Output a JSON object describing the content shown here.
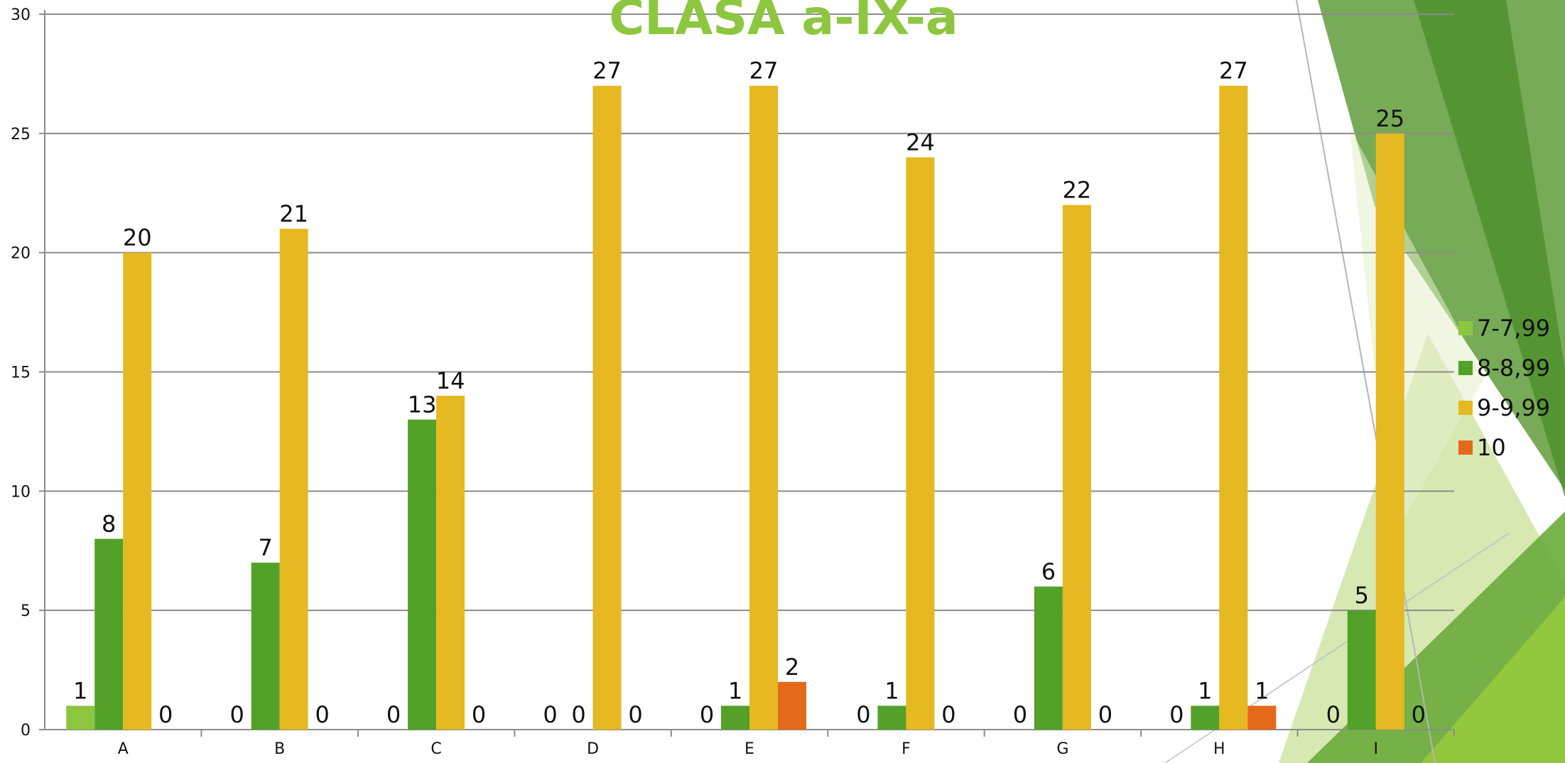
{
  "chart_data": {
    "type": "bar",
    "title": "CLASA a-IX-a",
    "xlabel": "",
    "ylabel": "",
    "categories": [
      "A",
      "B",
      "C",
      "D",
      "E",
      "F",
      "G",
      "H",
      "I"
    ],
    "ylim": [
      0,
      30
    ],
    "yticks": [
      "0",
      "5",
      "10",
      "15",
      "20",
      "25",
      "30"
    ],
    "grid": true,
    "legend_position": "right",
    "title_color": "#8dc63f",
    "series": [
      {
        "name": "7-7,99",
        "color": "#8cc63f",
        "values": [
          1,
          0,
          0,
          0,
          0,
          0,
          0,
          0,
          0
        ],
        "labels": [
          "1",
          "0",
          "0",
          "0",
          "0",
          "0",
          "0",
          "0",
          "0"
        ]
      },
      {
        "name": "8-8,99",
        "color": "#53a128",
        "values": [
          8,
          7,
          13,
          0,
          1,
          1,
          6,
          1,
          5
        ],
        "labels": [
          "8",
          "7",
          "13",
          "0",
          "1",
          "1",
          "6",
          "1",
          "5"
        ]
      },
      {
        "name": "9-9,99",
        "color": "#e6b821",
        "values": [
          20,
          21,
          14,
          27,
          27,
          24,
          22,
          27,
          25
        ],
        "labels": [
          "20",
          "21",
          "14",
          "27",
          "27",
          "24",
          "22",
          "27",
          "25"
        ]
      },
      {
        "name": "10",
        "color": "#e5691b",
        "values": [
          0,
          0,
          0,
          0,
          2,
          0,
          0,
          1,
          0
        ],
        "labels": [
          "0",
          "0",
          "0",
          "0",
          "2",
          "0",
          "0",
          "1",
          "0"
        ]
      }
    ]
  }
}
